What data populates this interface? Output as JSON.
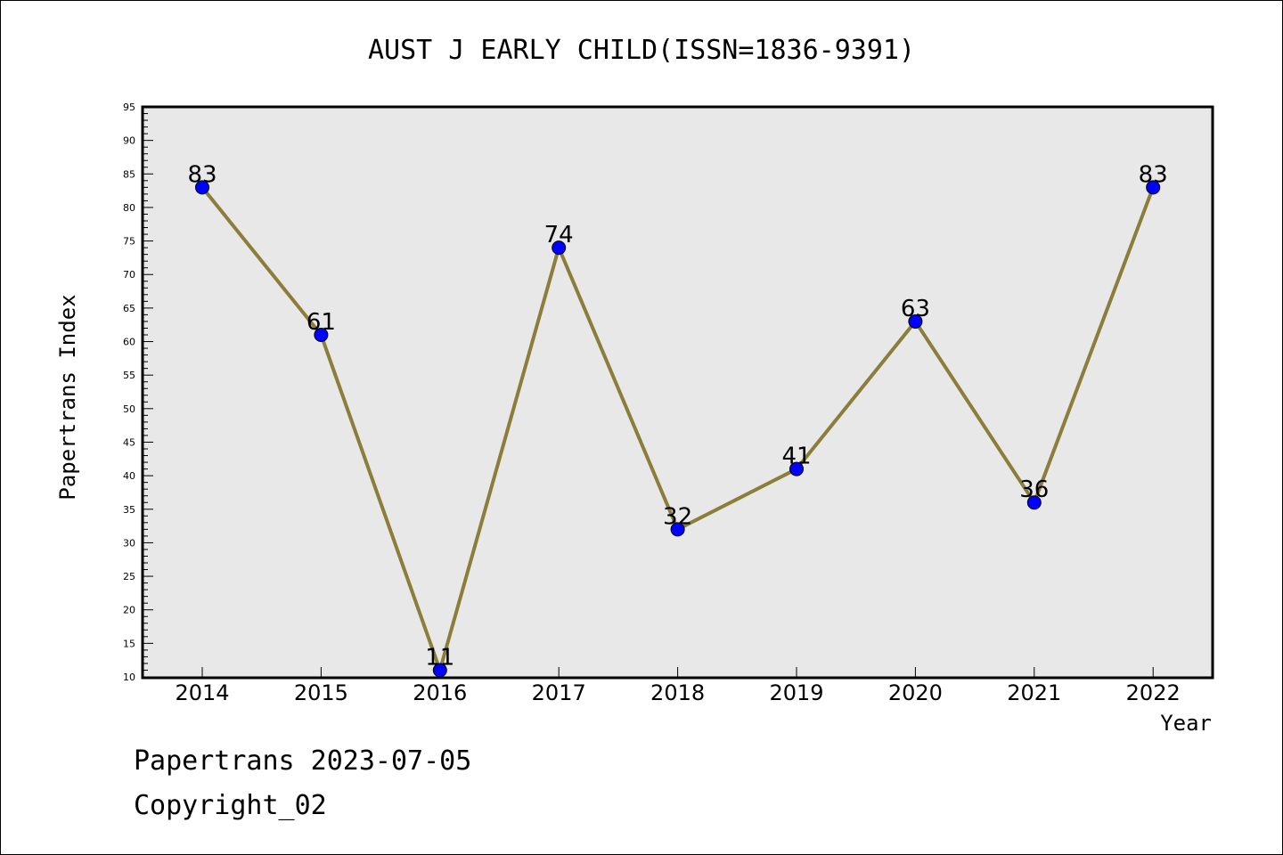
{
  "chart_data": {
    "type": "line",
    "title": "AUST J EARLY CHILD(ISSN=1836-9391)",
    "xlabel": "Year",
    "ylabel": "Papertrans Index",
    "categories": [
      "2014",
      "2015",
      "2016",
      "2017",
      "2018",
      "2019",
      "2020",
      "2021",
      "2022"
    ],
    "series": [
      {
        "values": [
          83,
          61,
          11,
          74,
          32,
          41,
          63,
          36,
          83
        ]
      }
    ],
    "data_labels": [
      "83",
      "61",
      "11",
      "74",
      "32",
      "41",
      "63",
      "36",
      "83"
    ],
    "ylim": [
      10,
      95
    ],
    "yticks": [
      "10",
      "15",
      "20",
      "25",
      "30",
      "35",
      "40",
      "45",
      "50",
      "55",
      "60",
      "65",
      "70",
      "75",
      "80",
      "85",
      "90",
      "95"
    ],
    "grid": false,
    "plot_background": "#e8e8e8",
    "line_color": "#8b7d3a",
    "marker_color": "#0000ff"
  },
  "footer": {
    "line1": "Papertrans 2023-07-05",
    "line2": "Copyright_02"
  }
}
